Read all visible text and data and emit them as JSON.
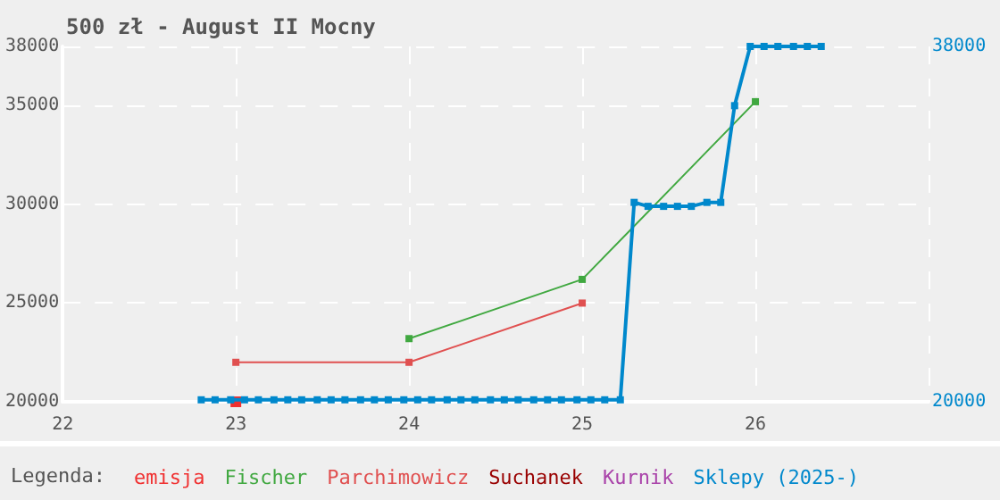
{
  "chart_data": {
    "type": "line",
    "title": "500 zł - August II Mocny",
    "legend_title": "Legenda:",
    "legend": "bottom",
    "grid": true,
    "marker": "square",
    "line_style": "solid",
    "xlim": [
      22,
      27
    ],
    "xticks": [
      22,
      23,
      24,
      25,
      26
    ],
    "ylim": [
      20000,
      38000
    ],
    "yticks": [
      20000,
      25000,
      30000,
      35000,
      38000
    ],
    "y2lim": [
      20000,
      38000
    ],
    "y2ticks": [
      20000,
      38000
    ],
    "series": [
      {
        "name": "emisja",
        "color": "#f03030",
        "x": [
          23
        ],
        "values": [
          20000
        ]
      },
      {
        "name": "Fischer",
        "color": "#40a840",
        "x": [
          24,
          25,
          26
        ],
        "values": [
          23200,
          26200,
          35200
        ]
      },
      {
        "name": "Parchimowicz",
        "color": "#e05050",
        "x": [
          23,
          24,
          25
        ],
        "values": [
          22000,
          22000,
          25000
        ]
      },
      {
        "name": "Suchanek",
        "color": "#990000"
      },
      {
        "name": "Kurnik",
        "color": "#aa44aa"
      },
      {
        "name": "Sklepy (2025-)",
        "color": "#0088cc",
        "x": [
          22.8,
          22.88,
          22.97,
          23.05,
          23.13,
          23.22,
          23.3,
          23.38,
          23.47,
          23.55,
          23.63,
          23.72,
          23.8,
          23.88,
          23.97,
          24.05,
          24.13,
          24.22,
          24.3,
          24.38,
          24.47,
          24.55,
          24.63,
          24.72,
          24.8,
          24.88,
          24.97,
          25.05,
          25.13,
          25.22,
          25.3,
          25.38,
          25.47,
          25.55,
          25.63,
          25.72,
          25.8,
          25.88,
          25.97,
          26.05,
          26.13,
          26.22,
          26.3,
          26.38
        ],
        "values": [
          20100,
          20100,
          20100,
          20100,
          20100,
          20100,
          20100,
          20100,
          20100,
          20100,
          20100,
          20100,
          20100,
          20100,
          20100,
          20100,
          20100,
          20100,
          20100,
          20100,
          20100,
          20100,
          20100,
          20100,
          20100,
          20100,
          20100,
          20100,
          20100,
          20100,
          30100,
          29900,
          29900,
          29900,
          29900,
          30100,
          30100,
          35000,
          38000,
          38000,
          38000,
          38000,
          38000,
          38000
        ]
      }
    ]
  }
}
